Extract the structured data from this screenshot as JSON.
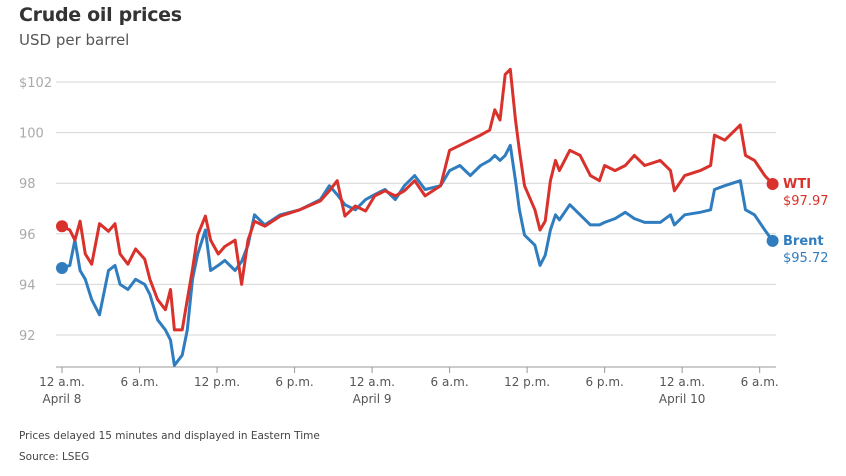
{
  "chart_data": {
    "type": "line",
    "title": "Crude oil prices",
    "subtitle": "USD per barrel",
    "ylim": [
      91,
      102.5
    ],
    "yticks": [
      {
        "value": 102,
        "label": "$102"
      },
      {
        "value": 100,
        "label": "100"
      },
      {
        "value": 98,
        "label": "98"
      },
      {
        "value": 96,
        "label": "96"
      },
      {
        "value": 94,
        "label": "94"
      },
      {
        "value": 92,
        "label": "92"
      }
    ],
    "xticks": [
      {
        "t": "04-08 00:00",
        "label": "12 a.m.",
        "sub": "April 8"
      },
      {
        "t": "04-08 06:00",
        "label": "6 a.m.",
        "sub": ""
      },
      {
        "t": "04-08 12:00",
        "label": "12 p.m.",
        "sub": ""
      },
      {
        "t": "04-08 18:00",
        "label": "6 p.m.",
        "sub": ""
      },
      {
        "t": "04-09 00:00",
        "label": "12 a.m.",
        "sub": "April 9"
      },
      {
        "t": "04-09 06:00",
        "label": "6 a.m.",
        "sub": ""
      },
      {
        "t": "04-09 12:00",
        "label": "12 p.m.",
        "sub": ""
      },
      {
        "t": "04-09 18:00",
        "label": "6 p.m.",
        "sub": ""
      },
      {
        "t": "04-10 00:00",
        "label": "12 a.m.",
        "sub": "April 10"
      },
      {
        "t": "04-10 06:00",
        "label": "6 a.m.",
        "sub": ""
      }
    ],
    "grid": true,
    "t": [
      "04-08 00:00",
      "04-08 00:36",
      "04-08 01:00",
      "04-08 01:24",
      "04-08 01:48",
      "04-08 02:18",
      "04-08 02:54",
      "04-08 03:36",
      "04-08 04:06",
      "04-08 04:30",
      "04-08 05:06",
      "04-08 05:42",
      "04-08 06:24",
      "04-08 06:48",
      "04-08 07:24",
      "04-08 08:00",
      "04-08 08:24",
      "04-08 08:42",
      "04-08 09:18",
      "04-08 09:42",
      "04-08 10:06",
      "04-08 10:30",
      "04-08 11:06",
      "04-08 11:30",
      "04-08 12:06",
      "04-08 12:36",
      "04-08 13:24",
      "04-08 13:54",
      "04-08 14:24",
      "04-08 14:54",
      "04-08 15:42",
      "04-08 16:54",
      "04-08 18:24",
      "04-08 20:00",
      "04-08 20:42",
      "04-08 21:18",
      "04-08 21:54",
      "04-08 22:42",
      "04-08 23:30",
      "04-09 00:12",
      "04-09 01:00",
      "04-09 01:48",
      "04-09 02:30",
      "04-09 03:18",
      "04-09 04:06",
      "04-09 05:18",
      "04-09 06:00",
      "04-09 06:48",
      "04-09 07:36",
      "04-09 08:24",
      "04-09 09:06",
      "04-09 09:30",
      "04-09 09:54",
      "04-09 10:18",
      "04-09 10:42",
      "04-09 11:06",
      "04-09 11:24",
      "04-09 11:48",
      "04-09 12:36",
      "04-09 13:00",
      "04-09 13:24",
      "04-09 13:48",
      "04-09 14:12",
      "04-09 14:30",
      "04-09 15:18",
      "04-09 16:06",
      "04-09 16:54",
      "04-09 17:36",
      "04-09 18:00",
      "04-09 18:48",
      "04-09 19:36",
      "04-09 20:18",
      "04-09 21:06",
      "04-09 22:18",
      "04-09 23:06",
      "04-09 23:24",
      "04-10 00:12",
      "04-10 01:24",
      "04-10 02:12",
      "04-10 02:30",
      "04-10 03:18",
      "04-10 04:30",
      "04-10 04:54",
      "04-10 05:36",
      "04-10 06:24",
      "04-10 07:00"
    ],
    "series": [
      {
        "name": "WTI",
        "last_label": "$97.97",
        "color": "#d9312b",
        "values": [
          96.3,
          96.15,
          95.75,
          96.5,
          95.2,
          94.8,
          96.4,
          96.1,
          96.4,
          95.2,
          94.8,
          95.4,
          95.0,
          94.2,
          93.4,
          93.0,
          93.8,
          92.2,
          92.2,
          93.4,
          94.6,
          95.95,
          96.7,
          95.75,
          95.2,
          95.5,
          95.75,
          94.0,
          95.75,
          96.5,
          96.3,
          96.7,
          96.95,
          97.3,
          97.7,
          98.1,
          96.7,
          97.1,
          96.9,
          97.5,
          97.7,
          97.5,
          97.7,
          98.1,
          97.5,
          97.9,
          99.3,
          99.5,
          99.7,
          99.9,
          100.1,
          100.9,
          100.5,
          102.3,
          102.5,
          100.5,
          99.3,
          97.9,
          96.95,
          96.15,
          96.5,
          98.1,
          98.9,
          98.5,
          99.3,
          99.1,
          98.3,
          98.1,
          98.7,
          98.5,
          98.7,
          99.1,
          98.7,
          98.9,
          98.5,
          97.7,
          98.3,
          98.5,
          98.7,
          99.9,
          99.7,
          100.3,
          99.1,
          98.9,
          98.3,
          97.97
        ]
      },
      {
        "name": "Brent",
        "last_label": "$95.72",
        "color": "#2f7dbf",
        "values": [
          94.65,
          94.75,
          95.75,
          94.55,
          94.2,
          93.4,
          92.8,
          94.55,
          94.75,
          94.0,
          93.8,
          94.2,
          94.0,
          93.6,
          92.6,
          92.2,
          91.8,
          90.8,
          91.2,
          92.2,
          94.2,
          95.2,
          96.15,
          94.55,
          94.75,
          94.95,
          94.55,
          94.9,
          95.55,
          96.75,
          96.35,
          96.75,
          96.95,
          97.35,
          97.9,
          97.55,
          97.15,
          96.95,
          97.35,
          97.55,
          97.75,
          97.35,
          97.9,
          98.3,
          97.75,
          97.9,
          98.5,
          98.7,
          98.3,
          98.7,
          98.9,
          99.1,
          98.9,
          99.1,
          99.5,
          98.1,
          96.95,
          95.95,
          95.55,
          94.75,
          95.15,
          96.15,
          96.75,
          96.55,
          97.15,
          96.75,
          96.35,
          96.35,
          96.45,
          96.6,
          96.85,
          96.6,
          96.45,
          96.45,
          96.75,
          96.35,
          96.75,
          96.85,
          96.95,
          97.75,
          97.9,
          98.1,
          96.95,
          96.75,
          96.15,
          95.72
        ]
      }
    ]
  },
  "footer": {
    "note": "Prices delayed 15 minutes and displayed in Eastern Time",
    "source": "Source: LSEG"
  }
}
